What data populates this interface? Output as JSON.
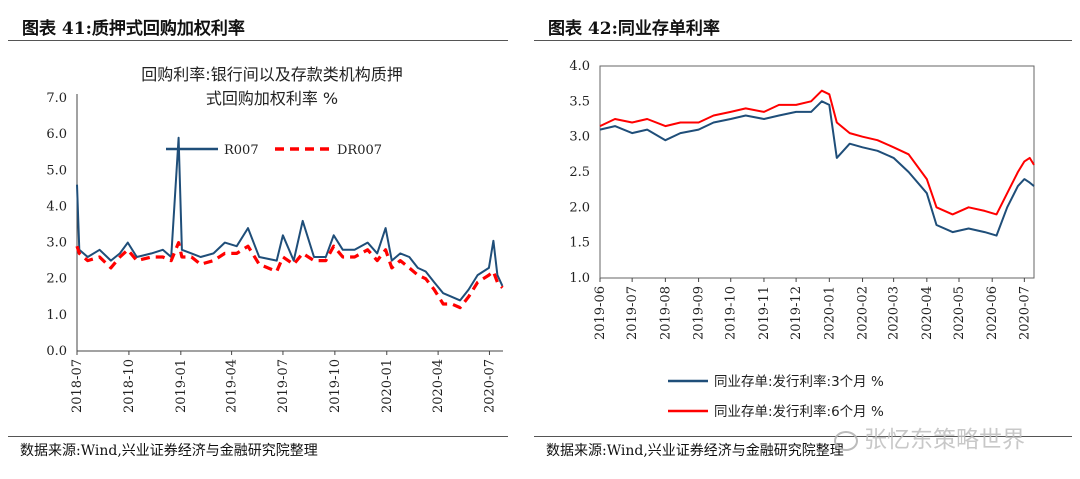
{
  "left": {
    "figure_title": "图表 41:质押式回购加权利率",
    "source": "数据来源:Wind,兴业证券经济与金融研究院整理"
  },
  "right": {
    "figure_title": "图表 42:同业存单利率",
    "source": "数据来源:Wind,兴业证券经济与金融研究院整理"
  },
  "watermark": "张忆东策略世界",
  "colors": {
    "navy": "#1f4e79",
    "red": "#ff0000"
  },
  "chart_data": [
    {
      "type": "line",
      "title_lines": [
        "回购利率:银行间以及存款类机构质押",
        "式回购加权利率 %"
      ],
      "xlabel": "",
      "ylabel": "",
      "ylim": [
        0,
        7
      ],
      "yticks": [
        "0.0",
        "1.0",
        "2.0",
        "3.0",
        "4.0",
        "5.0",
        "6.0",
        "7.0"
      ],
      "xlim": [
        "2018-07-01",
        "2020-07-25"
      ],
      "xticks": [
        "2018-07",
        "2018-10",
        "2019-01",
        "2019-04",
        "2019-07",
        "2019-10",
        "2020-01",
        "2020-04",
        "2020-07"
      ],
      "grid": false,
      "legend_position": "top",
      "series": [
        {
          "name": "R007",
          "color": "#1f4e79",
          "style": "solid",
          "points": [
            [
              "2018-07-01",
              4.6
            ],
            [
              "2018-07-05",
              2.8
            ],
            [
              "2018-07-20",
              2.6
            ],
            [
              "2018-08-10",
              2.8
            ],
            [
              "2018-08-30",
              2.5
            ],
            [
              "2018-09-15",
              2.7
            ],
            [
              "2018-09-29",
              3.0
            ],
            [
              "2018-10-15",
              2.6
            ],
            [
              "2018-11-10",
              2.7
            ],
            [
              "2018-11-30",
              2.8
            ],
            [
              "2018-12-15",
              2.6
            ],
            [
              "2018-12-28",
              5.9
            ],
            [
              "2019-01-03",
              2.8
            ],
            [
              "2019-01-20",
              2.7
            ],
            [
              "2019-02-05",
              2.6
            ],
            [
              "2019-02-28",
              2.7
            ],
            [
              "2019-03-20",
              3.0
            ],
            [
              "2019-04-10",
              2.9
            ],
            [
              "2019-04-30",
              3.4
            ],
            [
              "2019-05-20",
              2.6
            ],
            [
              "2019-06-20",
              2.5
            ],
            [
              "2019-07-01",
              3.2
            ],
            [
              "2019-07-20",
              2.5
            ],
            [
              "2019-08-05",
              3.6
            ],
            [
              "2019-08-25",
              2.6
            ],
            [
              "2019-09-15",
              2.6
            ],
            [
              "2019-09-29",
              3.2
            ],
            [
              "2019-10-15",
              2.8
            ],
            [
              "2019-11-05",
              2.8
            ],
            [
              "2019-11-28",
              3.0
            ],
            [
              "2019-12-15",
              2.7
            ],
            [
              "2019-12-30",
              3.4
            ],
            [
              "2020-01-10",
              2.5
            ],
            [
              "2020-01-25",
              2.7
            ],
            [
              "2020-02-10",
              2.6
            ],
            [
              "2020-02-25",
              2.3
            ],
            [
              "2020-03-10",
              2.2
            ],
            [
              "2020-03-25",
              1.9
            ],
            [
              "2020-04-10",
              1.6
            ],
            [
              "2020-04-25",
              1.5
            ],
            [
              "2020-05-10",
              1.4
            ],
            [
              "2020-05-25",
              1.7
            ],
            [
              "2020-06-10",
              2.1
            ],
            [
              "2020-06-30",
              2.3
            ],
            [
              "2020-07-08",
              3.05
            ],
            [
              "2020-07-15",
              2.1
            ],
            [
              "2020-07-24",
              1.8
            ]
          ]
        },
        {
          "name": "DR007",
          "color": "#ff0000",
          "style": "dashed",
          "points": [
            [
              "2018-07-01",
              2.9
            ],
            [
              "2018-07-05",
              2.7
            ],
            [
              "2018-07-20",
              2.5
            ],
            [
              "2018-08-10",
              2.6
            ],
            [
              "2018-08-30",
              2.3
            ],
            [
              "2018-09-15",
              2.6
            ],
            [
              "2018-09-29",
              2.8
            ],
            [
              "2018-10-15",
              2.5
            ],
            [
              "2018-11-10",
              2.6
            ],
            [
              "2018-11-30",
              2.6
            ],
            [
              "2018-12-15",
              2.5
            ],
            [
              "2018-12-28",
              3.0
            ],
            [
              "2019-01-03",
              2.6
            ],
            [
              "2019-01-20",
              2.6
            ],
            [
              "2019-02-05",
              2.4
            ],
            [
              "2019-02-28",
              2.5
            ],
            [
              "2019-03-20",
              2.7
            ],
            [
              "2019-04-10",
              2.7
            ],
            [
              "2019-04-30",
              2.9
            ],
            [
              "2019-05-20",
              2.4
            ],
            [
              "2019-06-20",
              2.2
            ],
            [
              "2019-07-01",
              2.6
            ],
            [
              "2019-07-20",
              2.4
            ],
            [
              "2019-08-05",
              2.7
            ],
            [
              "2019-08-25",
              2.5
            ],
            [
              "2019-09-15",
              2.5
            ],
            [
              "2019-09-29",
              2.9
            ],
            [
              "2019-10-15",
              2.6
            ],
            [
              "2019-11-05",
              2.6
            ],
            [
              "2019-11-28",
              2.8
            ],
            [
              "2019-12-15",
              2.5
            ],
            [
              "2019-12-30",
              2.8
            ],
            [
              "2020-01-10",
              2.3
            ],
            [
              "2020-01-25",
              2.5
            ],
            [
              "2020-02-10",
              2.3
            ],
            [
              "2020-02-25",
              2.1
            ],
            [
              "2020-03-10",
              2.0
            ],
            [
              "2020-03-25",
              1.7
            ],
            [
              "2020-04-10",
              1.3
            ],
            [
              "2020-04-25",
              1.3
            ],
            [
              "2020-05-10",
              1.2
            ],
            [
              "2020-05-25",
              1.5
            ],
            [
              "2020-06-10",
              1.9
            ],
            [
              "2020-06-30",
              2.1
            ],
            [
              "2020-07-08",
              2.2
            ],
            [
              "2020-07-15",
              1.9
            ],
            [
              "2020-07-24",
              1.75
            ]
          ]
        }
      ]
    },
    {
      "type": "line",
      "title": "",
      "xlabel": "",
      "ylabel": "",
      "ylim": [
        1,
        4
      ],
      "yticks": [
        "1.0",
        "1.5",
        "2.0",
        "2.5",
        "3.0",
        "3.5",
        "4.0"
      ],
      "xlim": [
        "2019-06-01",
        "2020-07-10"
      ],
      "xticks": [
        "2019-06",
        "2019-07",
        "2019-08",
        "2019-09",
        "2019-10",
        "2019-11",
        "2019-12",
        "2020-01",
        "2020-02",
        "2020-03",
        "2020-04",
        "2020-05",
        "2020-06",
        "2020-07"
      ],
      "grid": false,
      "legend_position": "bottom",
      "series": [
        {
          "name": "同业存单:发行利率:3个月 %",
          "color": "#1f4e79",
          "style": "solid",
          "points": [
            [
              "2019-06-01",
              3.1
            ],
            [
              "2019-06-15",
              3.15
            ],
            [
              "2019-07-01",
              3.05
            ],
            [
              "2019-07-15",
              3.1
            ],
            [
              "2019-08-01",
              2.95
            ],
            [
              "2019-08-15",
              3.05
            ],
            [
              "2019-09-01",
              3.1
            ],
            [
              "2019-09-15",
              3.2
            ],
            [
              "2019-10-01",
              3.25
            ],
            [
              "2019-10-15",
              3.3
            ],
            [
              "2019-11-01",
              3.25
            ],
            [
              "2019-11-15",
              3.3
            ],
            [
              "2019-12-01",
              3.35
            ],
            [
              "2019-12-15",
              3.35
            ],
            [
              "2019-12-25",
              3.5
            ],
            [
              "2020-01-01",
              3.45
            ],
            [
              "2020-01-08",
              2.7
            ],
            [
              "2020-01-20",
              2.9
            ],
            [
              "2020-02-01",
              2.85
            ],
            [
              "2020-02-15",
              2.8
            ],
            [
              "2020-03-01",
              2.7
            ],
            [
              "2020-03-15",
              2.5
            ],
            [
              "2020-04-01",
              2.2
            ],
            [
              "2020-04-10",
              1.75
            ],
            [
              "2020-04-25",
              1.65
            ],
            [
              "2020-05-10",
              1.7
            ],
            [
              "2020-05-25",
              1.65
            ],
            [
              "2020-06-05",
              1.6
            ],
            [
              "2020-06-15",
              2.0
            ],
            [
              "2020-06-25",
              2.3
            ],
            [
              "2020-07-01",
              2.4
            ],
            [
              "2020-07-06",
              2.35
            ],
            [
              "2020-07-10",
              2.3
            ]
          ]
        },
        {
          "name": "同业存单:发行利率:6个月 %",
          "color": "#ff0000",
          "style": "solid",
          "points": [
            [
              "2019-06-01",
              3.15
            ],
            [
              "2019-06-15",
              3.25
            ],
            [
              "2019-07-01",
              3.2
            ],
            [
              "2019-07-15",
              3.25
            ],
            [
              "2019-08-01",
              3.15
            ],
            [
              "2019-08-15",
              3.2
            ],
            [
              "2019-09-01",
              3.2
            ],
            [
              "2019-09-15",
              3.3
            ],
            [
              "2019-10-01",
              3.35
            ],
            [
              "2019-10-15",
              3.4
            ],
            [
              "2019-11-01",
              3.35
            ],
            [
              "2019-11-15",
              3.45
            ],
            [
              "2019-12-01",
              3.45
            ],
            [
              "2019-12-15",
              3.5
            ],
            [
              "2019-12-25",
              3.65
            ],
            [
              "2020-01-01",
              3.6
            ],
            [
              "2020-01-08",
              3.2
            ],
            [
              "2020-01-20",
              3.05
            ],
            [
              "2020-02-01",
              3.0
            ],
            [
              "2020-02-15",
              2.95
            ],
            [
              "2020-03-01",
              2.85
            ],
            [
              "2020-03-15",
              2.75
            ],
            [
              "2020-04-01",
              2.4
            ],
            [
              "2020-04-10",
              2.0
            ],
            [
              "2020-04-25",
              1.9
            ],
            [
              "2020-05-10",
              2.0
            ],
            [
              "2020-05-25",
              1.95
            ],
            [
              "2020-06-05",
              1.9
            ],
            [
              "2020-06-15",
              2.2
            ],
            [
              "2020-06-25",
              2.5
            ],
            [
              "2020-07-01",
              2.65
            ],
            [
              "2020-07-06",
              2.7
            ],
            [
              "2020-07-10",
              2.6
            ]
          ]
        }
      ]
    }
  ]
}
